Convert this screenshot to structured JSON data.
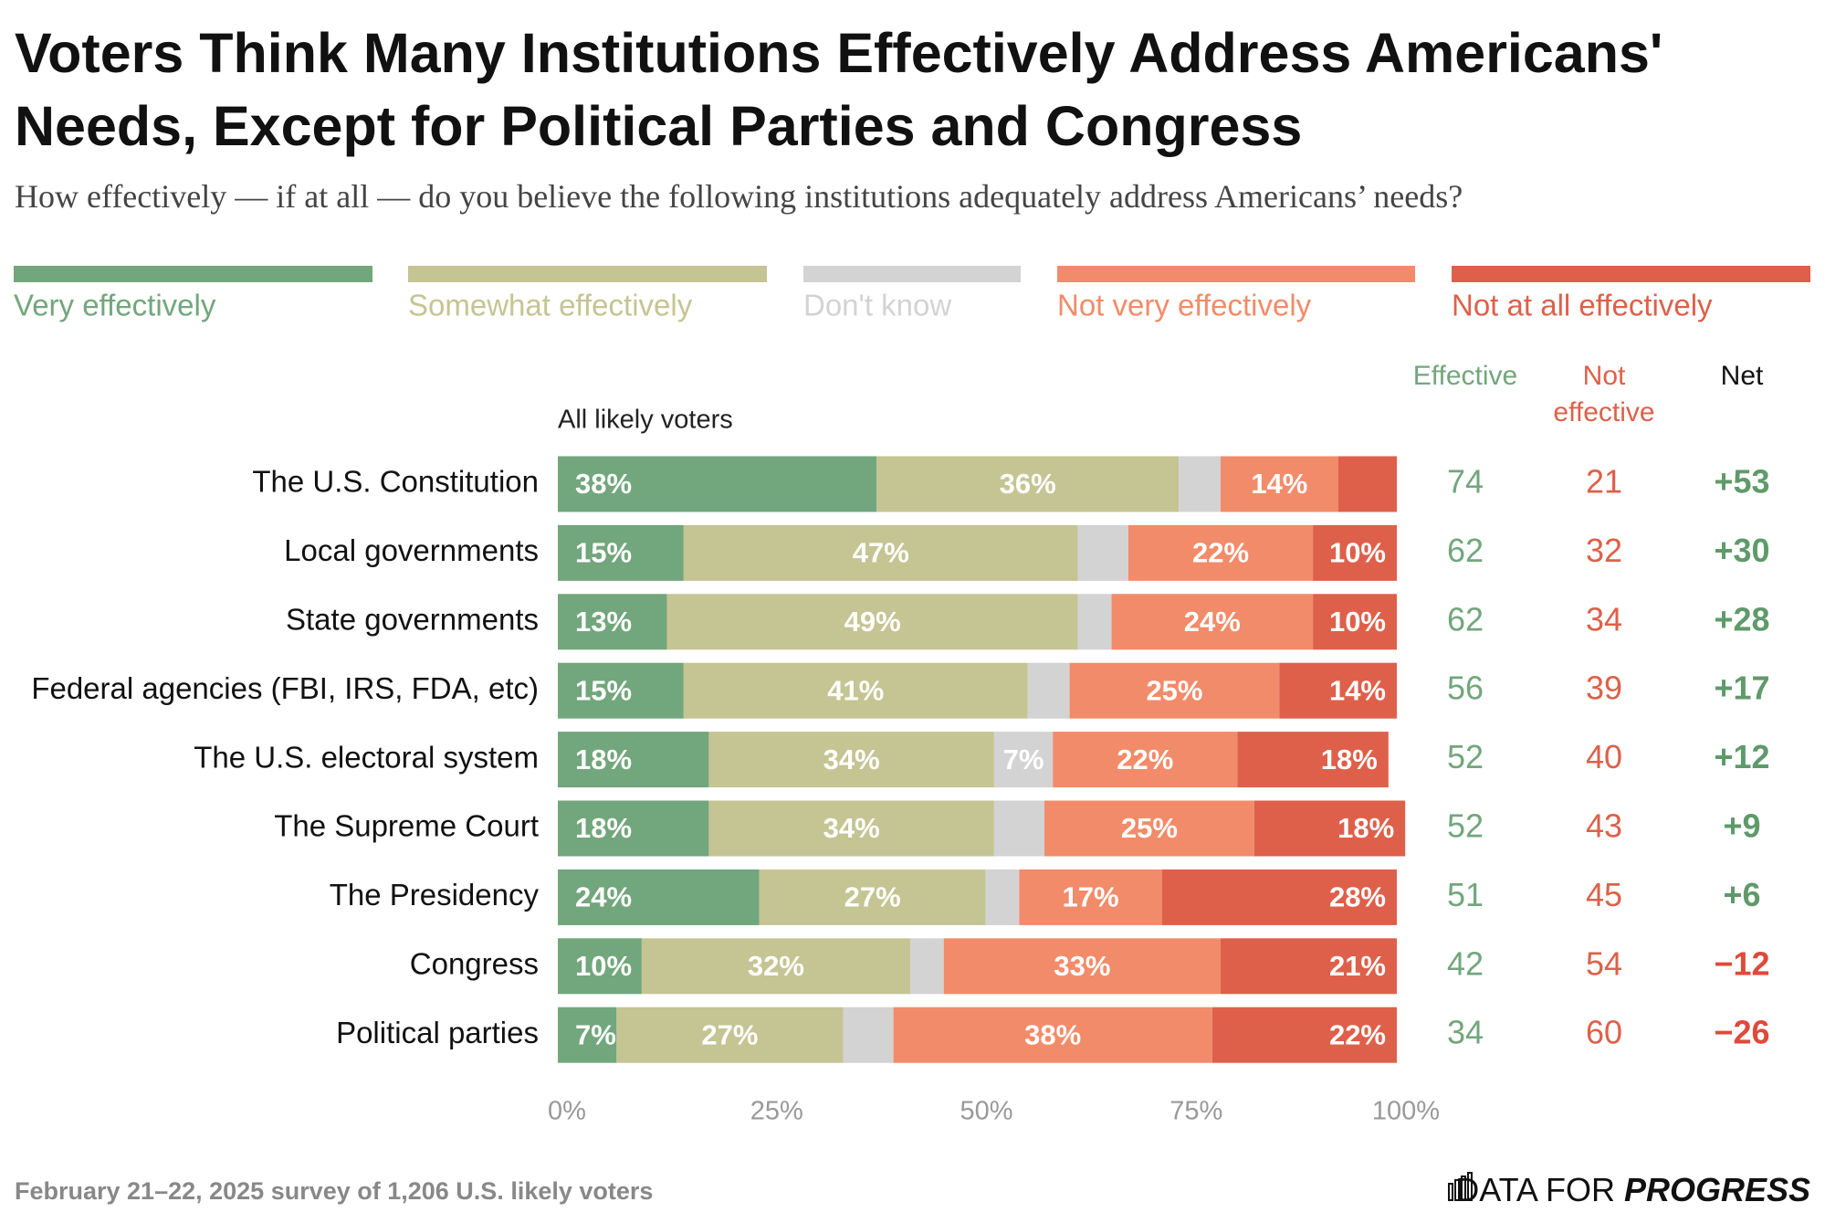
{
  "chart_data": {
    "type": "stacked-bar",
    "title": "Voters Think Many Institutions Effectively Address Americans' Needs, Except for Political Parties and Congress",
    "subtitle": "How effectively — if at all — do you believe the following institutions adequately address Americans’ needs?",
    "group_label": "All likely voters",
    "categories": [
      "The U.S. Constitution",
      "Local governments",
      "State governments",
      "Federal agencies (FBI, IRS, FDA, etc)",
      "The U.S. electoral system",
      "The Supreme Court",
      "The Presidency",
      "Congress",
      "Political parties"
    ],
    "series": [
      {
        "name": "Very effectively",
        "color": "#72a67c",
        "values": [
          38,
          15,
          13,
          15,
          18,
          18,
          24,
          10,
          7
        ],
        "value_labels": [
          "38%",
          "15%",
          "13%",
          "15%",
          "18%",
          "18%",
          "24%",
          "10%",
          "7%"
        ]
      },
      {
        "name": "Somewhat effectively",
        "color": "#c5c493",
        "values": [
          36,
          47,
          49,
          41,
          34,
          34,
          27,
          32,
          27
        ],
        "value_labels": [
          "36%",
          "47%",
          "49%",
          "41%",
          "34%",
          "34%",
          "27%",
          "32%",
          "27%"
        ]
      },
      {
        "name": "Don't know",
        "color": "#d3d3d3",
        "values": [
          5,
          6,
          4,
          5,
          7,
          6,
          4,
          4,
          6
        ],
        "value_labels": [
          null,
          null,
          null,
          null,
          "7%",
          null,
          null,
          null,
          null
        ]
      },
      {
        "name": "Not very effectively",
        "color": "#f28b69",
        "values": [
          14,
          22,
          24,
          25,
          22,
          25,
          17,
          33,
          38
        ],
        "value_labels": [
          "14%",
          "22%",
          "24%",
          "25%",
          "22%",
          "25%",
          "17%",
          "33%",
          "38%"
        ]
      },
      {
        "name": "Not at all effectively",
        "color": "#de604a",
        "values": [
          7,
          10,
          10,
          14,
          18,
          18,
          28,
          21,
          22
        ],
        "value_labels": [
          null,
          "10%",
          "10%",
          "14%",
          "18%",
          "18%",
          "28%",
          "21%",
          "22%"
        ]
      }
    ],
    "xlim": [
      0,
      100
    ],
    "xticks": [
      {
        "value": 0,
        "label": "0%"
      },
      {
        "value": 25,
        "label": "25%"
      },
      {
        "value": 50,
        "label": "50%"
      },
      {
        "value": 75,
        "label": "75%"
      },
      {
        "value": 100,
        "label": "100%"
      }
    ],
    "columns": [
      {
        "name": "Effective",
        "color": "#72a67c",
        "values": [
          74,
          62,
          62,
          56,
          52,
          52,
          51,
          42,
          34
        ]
      },
      {
        "name": "Not effective",
        "color": "#de604a",
        "values": [
          21,
          32,
          34,
          39,
          40,
          43,
          45,
          54,
          60
        ]
      },
      {
        "name": "Net",
        "positive_color": "#5f9a6a",
        "negative_color": "#de4a3a",
        "values": [
          53,
          30,
          28,
          17,
          12,
          9,
          6,
          -12,
          -26
        ],
        "value_labels": [
          "+53",
          "+30",
          "+28",
          "+17",
          "+12",
          "+9",
          "+6",
          "−12",
          "−26"
        ]
      }
    ],
    "footer": "February 21–22, 2025 survey of 1,206 U.S. likely voters",
    "logo": [
      "DATA FOR",
      "PROGRESS"
    ]
  }
}
